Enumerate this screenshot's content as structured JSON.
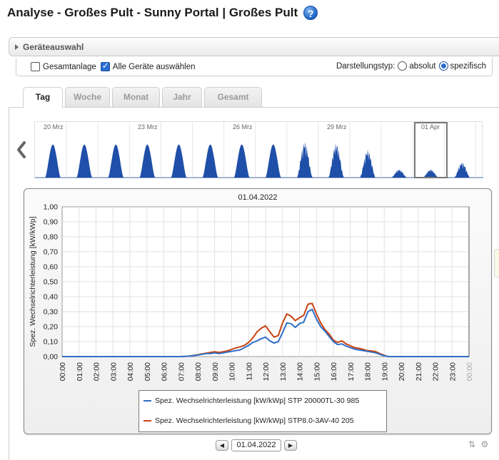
{
  "page": {
    "title": "Analyse - Großes Pult - Sunny Portal | Großes Pult",
    "help_icon": "help-icon"
  },
  "device_section": {
    "label": "Geräteauswahl"
  },
  "options": {
    "gesamtanlage_label": "Gesamtanlage",
    "gesamtanlage_checked": false,
    "alle_geraete_label": "Alle Geräte auswählen",
    "alle_geraete_checked": true,
    "display_type_label": "Darstellungstyp:",
    "absolut_label": "absolut",
    "spezifisch_label": "spezifisch",
    "selected_display_type": "spezifisch"
  },
  "tabs": [
    {
      "label": "Tag",
      "active": true
    },
    {
      "label": "Woche",
      "active": false
    },
    {
      "label": "Monat",
      "active": false
    },
    {
      "label": "Jahr",
      "active": false
    },
    {
      "label": "Gesamt",
      "active": false
    }
  ],
  "overview": {
    "date_labels": [
      "20 Mrz",
      "23 Mrz",
      "26 Mrz",
      "29 Mrz",
      "01 Apr"
    ],
    "selected_label": "01 Apr",
    "fill_color": "#1f4fa8"
  },
  "chart_date_title": "01.04.2022",
  "date_nav": {
    "value": "01.04.2022"
  },
  "chart_data": {
    "type": "line",
    "title": "01.04.2022",
    "ylabel": "Spez. Wechselrichterleistung [kW/kWp]",
    "xlabel": "",
    "ylim": [
      0,
      1.0
    ],
    "y_ticks": [
      "0,00",
      "0,10",
      "0,20",
      "0,30",
      "0,40",
      "0,50",
      "0,60",
      "0,70",
      "0,80",
      "0,90",
      "1,00"
    ],
    "x_ticks": [
      "00:00",
      "01:00",
      "02:00",
      "03:00",
      "04:00",
      "05:00",
      "06:00",
      "07:00",
      "08:00",
      "09:00",
      "10:00",
      "11:00",
      "12:00",
      "13:00",
      "14:00",
      "15:00",
      "16:00",
      "17:00",
      "18:00",
      "19:00",
      "20:00",
      "21:00",
      "22:00",
      "23:00",
      "00:00"
    ],
    "grid": true,
    "x": [
      0,
      7,
      7.5,
      8,
      8.25,
      8.5,
      8.75,
      9,
      9.25,
      9.5,
      9.75,
      10,
      10.25,
      10.5,
      10.75,
      11,
      11.25,
      11.5,
      11.75,
      12,
      12.25,
      12.5,
      12.75,
      13,
      13.25,
      13.5,
      13.75,
      14,
      14.25,
      14.5,
      14.75,
      15,
      15.25,
      15.5,
      15.75,
      16,
      16.25,
      16.5,
      16.75,
      17,
      17.25,
      17.5,
      17.75,
      18,
      18.25,
      18.5,
      18.75,
      19,
      19.25,
      20,
      24
    ],
    "series": [
      {
        "name": "Spez. Wechselrichterleistung [kW/kWp] STP 20000TL-30 985",
        "color": "#2f6ec7",
        "values": [
          0,
          0,
          0.003,
          0.01,
          0.015,
          0.02,
          0.02,
          0.025,
          0.02,
          0.025,
          0.03,
          0.035,
          0.04,
          0.045,
          0.06,
          0.075,
          0.095,
          0.105,
          0.12,
          0.13,
          0.105,
          0.09,
          0.1,
          0.16,
          0.225,
          0.22,
          0.195,
          0.22,
          0.23,
          0.3,
          0.315,
          0.25,
          0.2,
          0.17,
          0.135,
          0.1,
          0.08,
          0.085,
          0.07,
          0.06,
          0.05,
          0.045,
          0.04,
          0.035,
          0.03,
          0.025,
          0.015,
          0.005,
          0,
          0,
          0
        ]
      },
      {
        "name": "Spez. Wechselrichterleistung [kW/kWp] STP8.0-3AV-40 205",
        "color": "#c8420f",
        "values": [
          0,
          0,
          0.004,
          0.012,
          0.018,
          0.023,
          0.028,
          0.032,
          0.028,
          0.032,
          0.038,
          0.048,
          0.058,
          0.065,
          0.075,
          0.095,
          0.125,
          0.165,
          0.19,
          0.205,
          0.165,
          0.13,
          0.14,
          0.225,
          0.285,
          0.27,
          0.24,
          0.26,
          0.275,
          0.35,
          0.355,
          0.285,
          0.225,
          0.18,
          0.15,
          0.11,
          0.095,
          0.105,
          0.085,
          0.072,
          0.06,
          0.055,
          0.048,
          0.04,
          0.038,
          0.033,
          0.02,
          0.008,
          0,
          0,
          0
        ]
      }
    ]
  }
}
